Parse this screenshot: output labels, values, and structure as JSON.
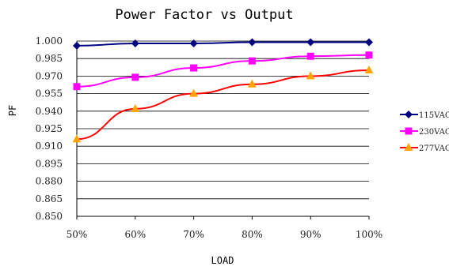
{
  "chart_data": {
    "type": "line",
    "title": "Power Factor vs Output",
    "xlabel": "LOAD",
    "ylabel": "PF",
    "categories": [
      "50%",
      "60%",
      "70%",
      "80%",
      "90%",
      "100%"
    ],
    "ylim": [
      0.85,
      1.0
    ],
    "yticks": [
      "1.000",
      "0.985",
      "0.970",
      "0.955",
      "0.940",
      "0.925",
      "0.910",
      "0.895",
      "0.880",
      "0.865",
      "0.850"
    ],
    "grid": true,
    "legend_position": "right",
    "series": [
      {
        "name": "115VAC",
        "color": "#000080",
        "marker": "diamond",
        "values": [
          0.996,
          0.998,
          0.998,
          0.999,
          0.999,
          0.999
        ]
      },
      {
        "name": "230VAC",
        "color": "#ff00ff",
        "marker": "square",
        "values": [
          0.961,
          0.969,
          0.977,
          0.983,
          0.987,
          0.988
        ]
      },
      {
        "name": "277VAC",
        "color": "#ff0000",
        "marker": "triangle",
        "markerColor": "#ffa500",
        "values": [
          0.916,
          0.942,
          0.955,
          0.963,
          0.97,
          0.975
        ]
      }
    ]
  }
}
